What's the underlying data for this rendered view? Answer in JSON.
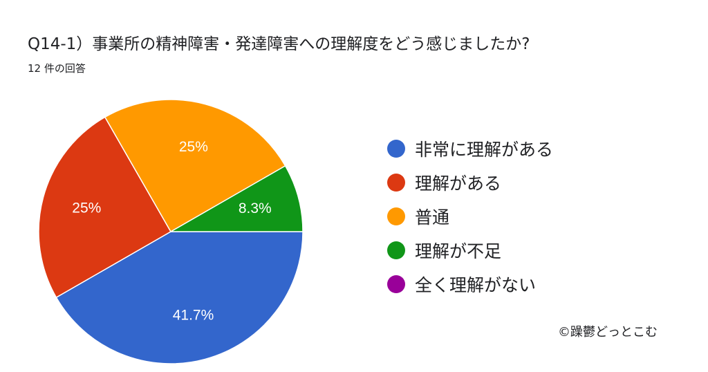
{
  "header": {
    "title": "Q14-1）事業所の精神障害・発達障害への理解度をどう感じましたか?",
    "responses": "12 件の回答"
  },
  "chart_data": {
    "type": "pie",
    "categories": [
      "非常に理解がある",
      "理解がある",
      "普通",
      "理解が不足",
      "全く理解がない"
    ],
    "values": [
      41.7,
      25,
      25,
      8.3,
      0
    ],
    "data_labels": [
      "41.7%",
      "25%",
      "25%",
      "8.3%",
      ""
    ],
    "colors": [
      "#3366cc",
      "#dc3912",
      "#ff9900",
      "#109618",
      "#990099"
    ],
    "legend_position": "right"
  },
  "footer": {
    "credit": "©躁鬱どっとこむ"
  }
}
